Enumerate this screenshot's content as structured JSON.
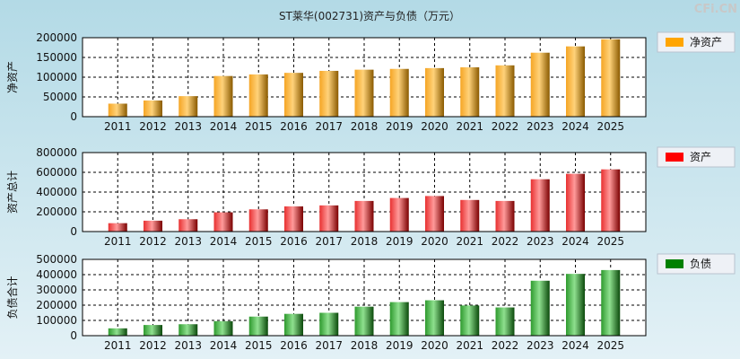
{
  "watermark": "CFi.CN",
  "chart_data": {
    "type": "bar",
    "title": "ST莱华(002731)资产与负债（万元）",
    "categories": [
      "2011",
      "2012",
      "2013",
      "2014",
      "2015",
      "2016",
      "2017",
      "2018",
      "2019",
      "2020",
      "2021",
      "2022",
      "2023",
      "2024",
      "2025"
    ],
    "panels": [
      {
        "name": "净资产",
        "ylabel": "净资产",
        "legend": "净资产",
        "color_light": "#ffd27a",
        "color_mid": "#f5a524",
        "color_dark": "#8a5a00",
        "legend_color": "#ffa500",
        "ylim": [
          0,
          200000
        ],
        "yticks": [
          0,
          50000,
          100000,
          150000,
          200000
        ],
        "values": [
          33000,
          41000,
          52000,
          103000,
          107000,
          111000,
          116000,
          119000,
          121000,
          123000,
          125000,
          130000,
          162000,
          178000,
          196000
        ]
      },
      {
        "name": "资产",
        "ylabel": "资产总计",
        "legend": "资产",
        "color_light": "#ff9a9a",
        "color_mid": "#e83030",
        "color_dark": "#7a0000",
        "legend_color": "#ff0000",
        "ylim": [
          0,
          800000
        ],
        "yticks": [
          0,
          200000,
          400000,
          600000,
          800000
        ],
        "values": [
          85000,
          110000,
          125000,
          195000,
          225000,
          255000,
          265000,
          310000,
          340000,
          360000,
          320000,
          310000,
          530000,
          585000,
          630000
        ]
      },
      {
        "name": "负债",
        "ylabel": "负债合计",
        "legend": "负债",
        "color_light": "#8fe08f",
        "color_mid": "#2e9a2e",
        "color_dark": "#0b4a0b",
        "legend_color": "#008000",
        "ylim": [
          0,
          500000
        ],
        "yticks": [
          0,
          100000,
          200000,
          300000,
          400000,
          500000
        ],
        "values": [
          48000,
          70000,
          75000,
          95000,
          125000,
          143000,
          150000,
          190000,
          220000,
          232000,
          198000,
          185000,
          360000,
          405000,
          430000
        ]
      }
    ]
  }
}
